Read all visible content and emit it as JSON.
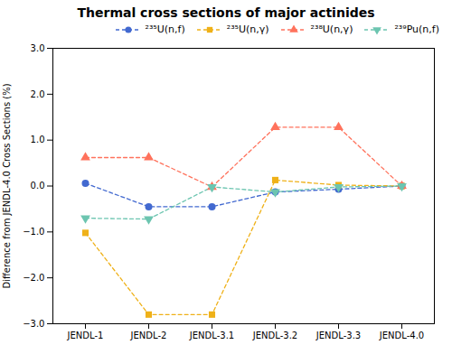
{
  "chart_data": {
    "type": "line",
    "title": "Thermal cross sections of major actinides",
    "ylabel": "Difference from JENDL-4.0 Cross Sections (%)",
    "categories": [
      "JENDL-1",
      "JENDL-2",
      "JENDL-3.1",
      "JENDL-3.2",
      "JENDL-3.3",
      "JENDL-4.0"
    ],
    "series": [
      {
        "name": "²³⁵U(n,f)",
        "values": [
          0.06,
          -0.45,
          -0.45,
          -0.13,
          -0.07,
          0.0
        ],
        "marker": "circle",
        "line_style": "dashed"
      },
      {
        "name": "²³⁵U(n,γ)",
        "values": [
          -1.02,
          -2.8,
          -2.8,
          0.13,
          0.02,
          0.0
        ],
        "marker": "square",
        "line_style": "dashed"
      },
      {
        "name": "²³⁸U(n,γ)",
        "values": [
          0.62,
          0.62,
          -0.02,
          1.28,
          1.28,
          0.0
        ],
        "marker": "triangle",
        "line_style": "dashed"
      },
      {
        "name": "²³⁹Pu(n,f)",
        "values": [
          -0.7,
          -0.72,
          -0.02,
          -0.13,
          -0.02,
          0.0
        ],
        "marker": "triangle-down",
        "line_style": "dashed"
      }
    ],
    "ylim": [
      -3,
      3
    ],
    "yticks": [
      -3,
      -2,
      -1,
      0,
      1,
      2,
      3
    ],
    "grid": false,
    "legend": "upper right"
  }
}
